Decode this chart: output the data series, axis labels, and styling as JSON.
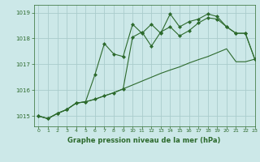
{
  "background_color": "#cce8e8",
  "grid_color": "#aacccc",
  "line_color": "#2d6a2d",
  "title": "Graphe pression niveau de la mer (hPa)",
  "xlim": [
    -0.5,
    23
  ],
  "ylim": [
    1014.6,
    1019.3
  ],
  "yticks": [
    1015,
    1016,
    1017,
    1018,
    1019
  ],
  "xticks": [
    0,
    1,
    2,
    3,
    4,
    5,
    6,
    7,
    8,
    9,
    10,
    11,
    12,
    13,
    14,
    15,
    16,
    17,
    18,
    19,
    20,
    21,
    22,
    23
  ],
  "series1_x": [
    0,
    1,
    2,
    3,
    4,
    5,
    6,
    7,
    8,
    9,
    10,
    11,
    12,
    13,
    14,
    15,
    16,
    17,
    18,
    19,
    20,
    21,
    22,
    23
  ],
  "series1_y": [
    1015.0,
    1014.9,
    1015.1,
    1015.25,
    1015.5,
    1015.55,
    1015.65,
    1015.78,
    1015.9,
    1016.05,
    1016.2,
    1016.35,
    1016.5,
    1016.65,
    1016.78,
    1016.9,
    1017.05,
    1017.18,
    1017.3,
    1017.45,
    1017.6,
    1017.1,
    1017.1,
    1017.2
  ],
  "series2_x": [
    0,
    1,
    2,
    3,
    4,
    5,
    6,
    7,
    8,
    9,
    10,
    11,
    12,
    13,
    14,
    15,
    16,
    17,
    18,
    19,
    20,
    21,
    22,
    23
  ],
  "series2_y": [
    1015.0,
    1014.9,
    1015.1,
    1015.25,
    1015.5,
    1015.55,
    1015.65,
    1015.78,
    1015.9,
    1016.05,
    1018.05,
    1018.25,
    1017.7,
    1018.25,
    1018.45,
    1018.1,
    1018.3,
    1018.6,
    1018.8,
    1018.75,
    1018.45,
    1018.2,
    1018.2,
    1017.2
  ],
  "series3_x": [
    0,
    1,
    2,
    3,
    4,
    5,
    6,
    7,
    8,
    9,
    10,
    11,
    12,
    13,
    14,
    15,
    16,
    17,
    18,
    19,
    20,
    21,
    22,
    23
  ],
  "series3_y": [
    1015.0,
    1014.9,
    1015.1,
    1015.25,
    1015.5,
    1015.55,
    1016.6,
    1017.8,
    1017.4,
    1017.3,
    1018.55,
    1018.2,
    1018.55,
    1018.2,
    1018.95,
    1018.45,
    1018.65,
    1018.75,
    1018.95,
    1018.85,
    1018.45,
    1018.2,
    1018.2,
    1017.2
  ]
}
